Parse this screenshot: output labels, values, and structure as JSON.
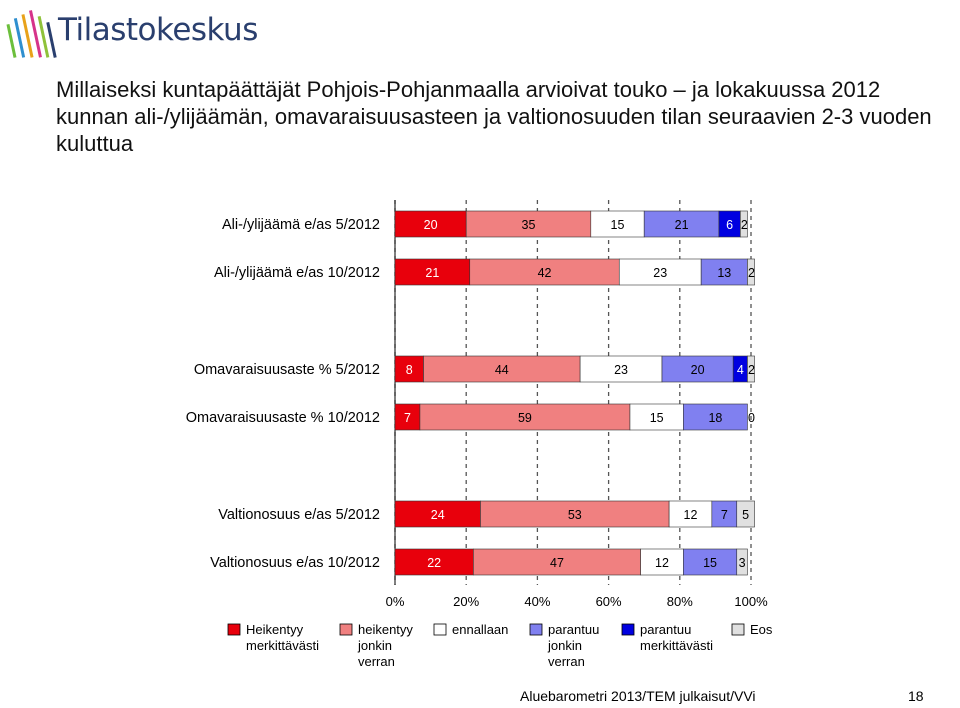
{
  "logo": {
    "text": "Tilastokeskus"
  },
  "title": "Millaiseksi kuntapäättäjät Pohjois-Pohjanmaalla arvioivat touko – ja lokakuussa 2012 kunnan ali-/ylijäämän, omavaraisuusasteen ja valtionosuuden tilan seuraavien 2-3 vuoden kuluttua",
  "footer": {
    "source": "Aluebarometri 2013/TEM julkaisut/VVi",
    "page": "18"
  },
  "colors": [
    "#e8000c",
    "#f08080",
    "#ffffff",
    "#8080f0",
    "#0000e0",
    "#e0e0e0"
  ],
  "chart_data": {
    "type": "bar",
    "orientation": "horizontal",
    "stacked": true,
    "percent": true,
    "categories": [
      "Ali-/ylijäämä e/as 5/2012",
      "Ali-/ylijäämä e/as 10/2012",
      "Omavaraisuusaste % 5/2012",
      "Omavaraisuusaste % 10/2012",
      "Valtionosuus e/as 5/2012",
      "Valtionosuus e/as 10/2012"
    ],
    "series": [
      {
        "name": "Heikentyy merkittävästi",
        "values": [
          20,
          21,
          8,
          7,
          24,
          22
        ]
      },
      {
        "name": "heikentyy jonkin verran",
        "values": [
          35,
          42,
          44,
          59,
          53,
          47
        ]
      },
      {
        "name": "ennallaan",
        "values": [
          15,
          23,
          23,
          15,
          12,
          12
        ]
      },
      {
        "name": "parantuu jonkin verran",
        "values": [
          21,
          13,
          20,
          18,
          7,
          15
        ]
      },
      {
        "name": "parantuu merkittävästi",
        "values": [
          6,
          0,
          4,
          0,
          0,
          0
        ]
      },
      {
        "name": "Eos",
        "values": [
          2,
          2,
          2,
          0,
          5,
          3
        ]
      }
    ],
    "xlim": [
      0,
      100
    ],
    "xticks": [
      "0%",
      "20%",
      "40%",
      "60%",
      "80%",
      "100%"
    ],
    "grid": true,
    "legend": "bottom"
  }
}
